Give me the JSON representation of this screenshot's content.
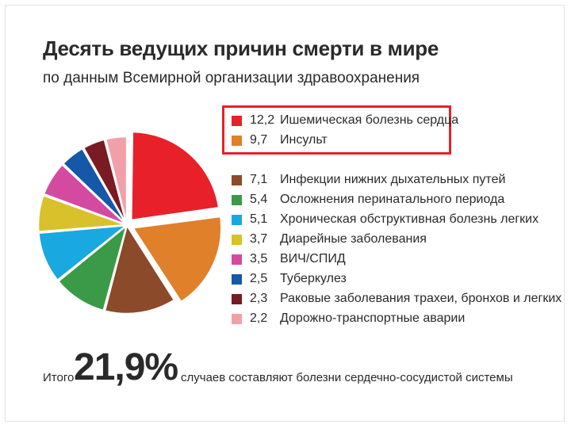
{
  "chart_data": {
    "type": "pie",
    "title": "Десять ведущих причин смерти в мире",
    "subtitle": "по данным Всемирной организации здравоохранения",
    "slices": [
      {
        "value": "12,2",
        "num": 12.2,
        "label": "Ишемическая болезнь сердца",
        "color": "#e8202a",
        "highlighted": true
      },
      {
        "value": "9,7",
        "num": 9.7,
        "label": "Инсульт",
        "color": "#e0802a",
        "highlighted": true
      },
      {
        "value": "7,1",
        "num": 7.1,
        "label": "Инфекции нижних дыхательных путей",
        "color": "#8b4a2a",
        "highlighted": false
      },
      {
        "value": "5,4",
        "num": 5.4,
        "label": "Осложнения перинатального периода",
        "color": "#3a9a48",
        "highlighted": false
      },
      {
        "value": "5,1",
        "num": 5.1,
        "label": "Хроническая обструктивная болезнь легких",
        "color": "#19a8e0",
        "highlighted": false
      },
      {
        "value": "3,7",
        "num": 3.7,
        "label": "Диарейные заболевания",
        "color": "#d8c12a",
        "highlighted": false
      },
      {
        "value": "3,5",
        "num": 3.5,
        "label": "ВИЧ/СПИД",
        "color": "#d34aa0",
        "highlighted": false
      },
      {
        "value": "2,5",
        "num": 2.5,
        "label": "Туберкулез",
        "color": "#1658a8",
        "highlighted": false
      },
      {
        "value": "2,3",
        "num": 2.3,
        "label": "Раковые заболевания трахеи, бронхов и легких",
        "color": "#7a1a22",
        "highlighted": false
      },
      {
        "value": "2,2",
        "num": 2.2,
        "label": "Дорожно-транспортные аварии",
        "color": "#f2a0a8",
        "highlighted": false
      }
    ],
    "legend_placement": "right"
  },
  "footer": {
    "prefix": "Итого",
    "total": "21,9%",
    "text": "случаев составляют болезни сердечно-сосудистой системы"
  }
}
